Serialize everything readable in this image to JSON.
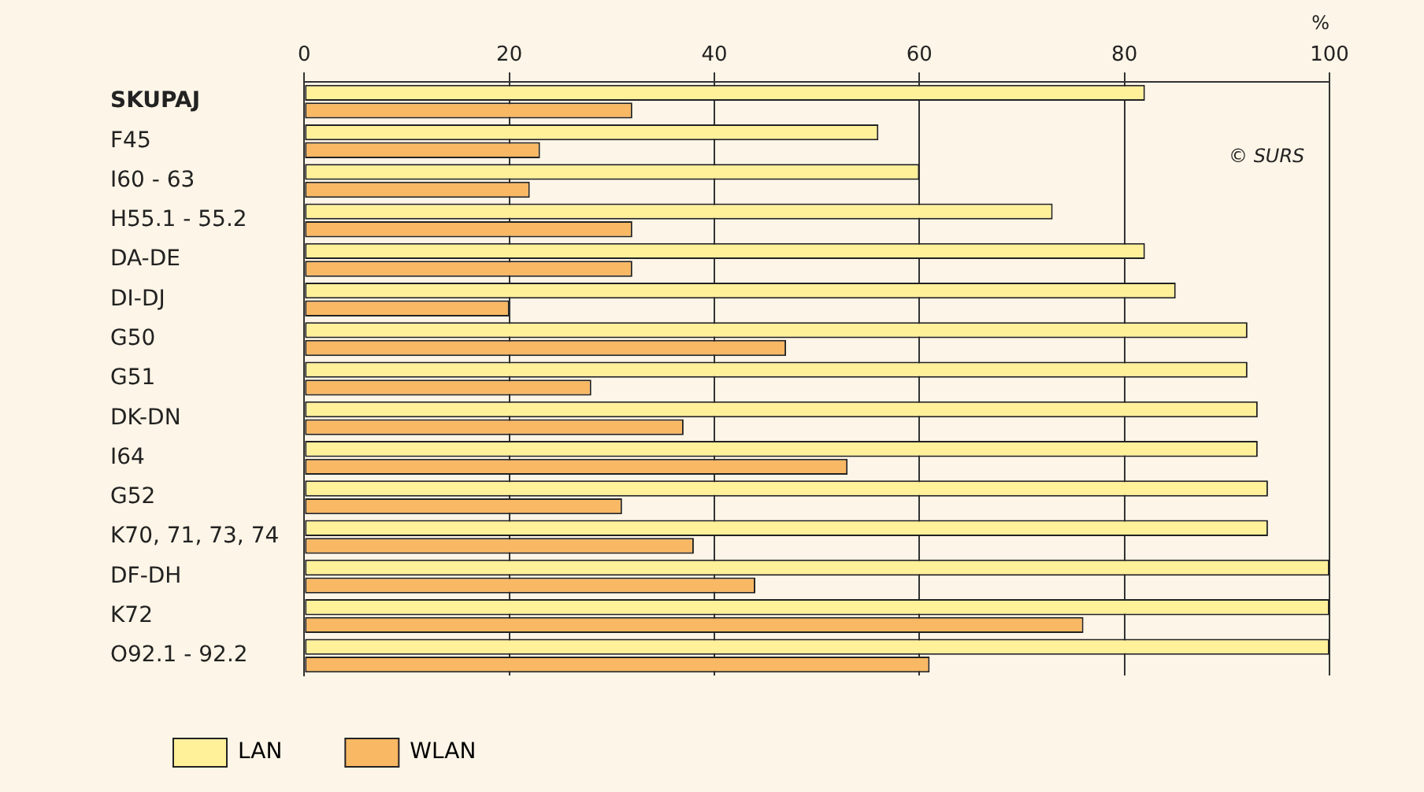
{
  "chart_data": {
    "type": "bar",
    "orientation": "horizontal",
    "xlabel": "%",
    "categories": [
      "SKUPAJ",
      "F45",
      "I60 - 63",
      "H55.1 - 55.2",
      "DA-DE",
      "DI-DJ",
      "G50",
      "G51",
      "DK-DN",
      "I64",
      "G52",
      "K70, 71, 73, 74",
      "DF-DH",
      "K72",
      "O92.1 - 92.2"
    ],
    "series": [
      {
        "name": "LAN",
        "color": "#fff09a",
        "values": [
          82,
          56,
          60,
          73,
          82,
          85,
          92,
          92,
          93,
          93,
          94,
          94,
          100,
          100,
          100
        ]
      },
      {
        "name": "WLAN",
        "color": "#f9b864",
        "values": [
          32,
          23,
          22,
          32,
          32,
          20,
          47,
          28,
          37,
          53,
          31,
          38,
          44,
          76,
          61
        ]
      }
    ],
    "xlim": [
      0,
      100
    ],
    "xticks": [
      0,
      20,
      40,
      60,
      80,
      100
    ],
    "grid": "x",
    "legend": "bottom left",
    "annotations": [
      "© SURS"
    ]
  }
}
